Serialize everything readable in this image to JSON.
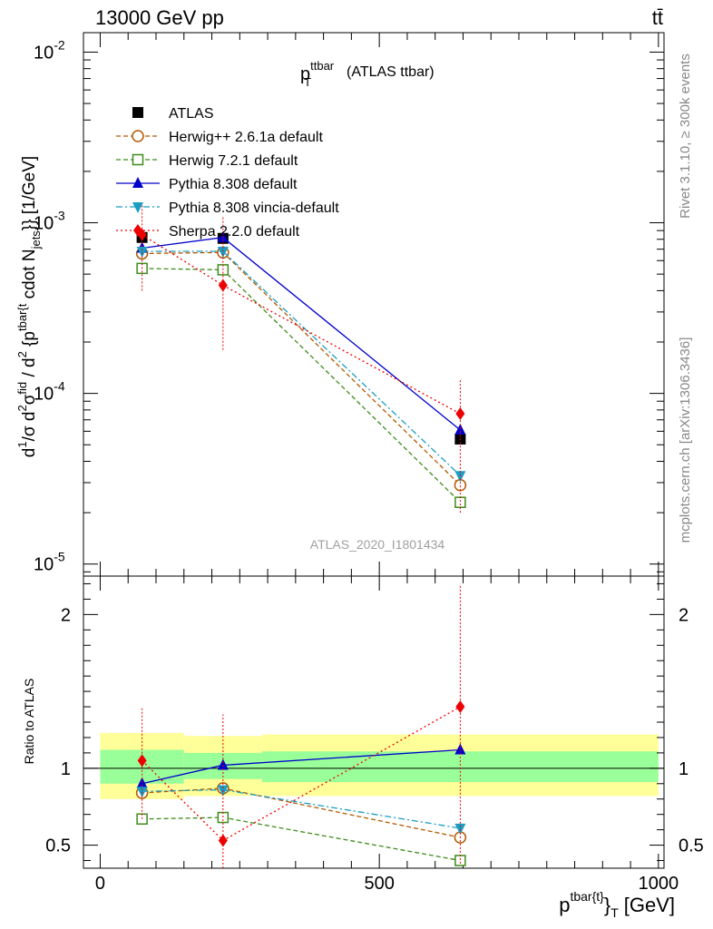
{
  "header": {
    "energy_label": "13000 GeV pp",
    "process_label": "tt̄"
  },
  "side_labels": {
    "rivet": "Rivet 3.1.10, ≥ 300k events",
    "mcplots": "mcplots.cern.ch [arXiv:1306.3436]"
  },
  "chart_data": [
    {
      "type": "line",
      "title_main": "p",
      "title_sub": "T",
      "title_sup": "ttbar",
      "title_rest": "(ATLAS ttbar)",
      "watermark": "ATLAS_2020_I1801434",
      "ylabel": "d¹/σ d²σⁿᶠᵈ / d²{pᵀᵗᵇᵃʳ} cdot N_jets}} [1/GeV]",
      "ylabel_text": "cdot N",
      "ylabel_unit": "}} [1/GeV]",
      "yscale": "log",
      "ylim": [
        8.5e-06,
        0.013
      ],
      "xlim": [
        -30,
        1010
      ],
      "yticks": [
        {
          "value": 0.01,
          "base": "10",
          "exp": "-2"
        },
        {
          "value": 0.001,
          "base": "10",
          "exp": "-3"
        },
        {
          "value": 0.0001,
          "base": "10",
          "exp": "-4"
        },
        {
          "value": 1e-05,
          "base": "10",
          "exp": "-5"
        }
      ],
      "x": [
        75,
        220,
        645
      ],
      "series": [
        {
          "name": "ATLAS",
          "values": [
            0.00082,
            0.00081,
            5.4e-05
          ]
        },
        {
          "name": "Herwig++ 2.6.1a default",
          "values": [
            0.00066,
            0.00067,
            2.9e-05
          ]
        },
        {
          "name": "Herwig 7.2.1 default",
          "values": [
            0.00054,
            0.00053,
            2.3e-05
          ]
        },
        {
          "name": "Pythia 8.308 default",
          "values": [
            0.00071,
            0.00082,
            6.1e-05
          ]
        },
        {
          "name": "Pythia 8.308 vincia-default",
          "values": [
            0.00068,
            0.00068,
            3.3e-05
          ]
        },
        {
          "name": "Sherpa 2.2.0 default",
          "values": [
            0.00085,
            0.00043,
            7.6e-05
          ],
          "err_lo": [
            0.0004,
            0.00018,
            2e-05
          ],
          "err_hi": [
            0.0013,
            0.0011,
            0.00012
          ]
        }
      ]
    },
    {
      "type": "line",
      "ylabel": "Ratio to ATLAS",
      "xlabel_main": "p",
      "xlabel_sup": "tbar{t}",
      "xlabel_sub": "}",
      "xlabel_sub2": "T",
      "xlabel_unit": "[GeV]",
      "ylim": [
        0.35,
        2.25
      ],
      "xlim": [
        -30,
        1010
      ],
      "yticks": [
        0.5,
        1,
        2
      ],
      "ytick_labels": [
        "0.5",
        "1",
        "2"
      ],
      "xticks": [
        0,
        500,
        1000
      ],
      "xtick_labels": [
        "0",
        "500",
        "1000"
      ],
      "bands": [
        {
          "x0": 0,
          "x1": 150,
          "yellow": [
            0.8,
            1.23
          ],
          "green": [
            0.9,
            1.12
          ]
        },
        {
          "x0": 150,
          "x1": 290,
          "yellow": [
            0.82,
            1.21
          ],
          "green": [
            0.93,
            1.1
          ]
        },
        {
          "x0": 290,
          "x1": 1000,
          "yellow": [
            0.82,
            1.22
          ],
          "green": [
            0.91,
            1.11
          ]
        }
      ],
      "x": [
        75,
        220,
        645
      ],
      "series": [
        {
          "name": "Herwig++ 2.6.1a default",
          "values": [
            0.84,
            0.87,
            0.55
          ]
        },
        {
          "name": "Herwig 7.2.1 default",
          "values": [
            0.67,
            0.68,
            0.4
          ]
        },
        {
          "name": "Pythia 8.308 default",
          "values": [
            0.9,
            1.02,
            1.12
          ]
        },
        {
          "name": "Pythia 8.308 vincia-default",
          "values": [
            0.85,
            0.86,
            0.61
          ]
        },
        {
          "name": "Sherpa 2.2.0 default",
          "values": [
            1.05,
            0.53,
            1.4
          ],
          "err_lo": [
            0.67,
            0.35,
            0.38
          ],
          "err_hi": [
            1.4,
            1.35,
            2.2
          ]
        }
      ]
    }
  ],
  "legend": [
    {
      "name": "ATLAS",
      "color": "#000000",
      "marker": "square-filled",
      "dash": ""
    },
    {
      "name": "Herwig++ 2.6.1a default",
      "color": "#b35900",
      "marker": "circle-open",
      "dash": "5,3"
    },
    {
      "name": "Herwig 7.2.1 default",
      "color": "#3d8c1a",
      "marker": "square-open",
      "dash": "5,3"
    },
    {
      "name": "Pythia 8.308 default",
      "color": "#0000cc",
      "marker": "triangle-up",
      "dash": ""
    },
    {
      "name": "Pythia 8.308 vincia-default",
      "color": "#1a9ec4",
      "marker": "triangle-down",
      "dash": "7,3,2,3"
    },
    {
      "name": "Sherpa 2.2.0 default",
      "color": "#ee0000",
      "marker": "diamond",
      "dash": "2,3"
    }
  ]
}
